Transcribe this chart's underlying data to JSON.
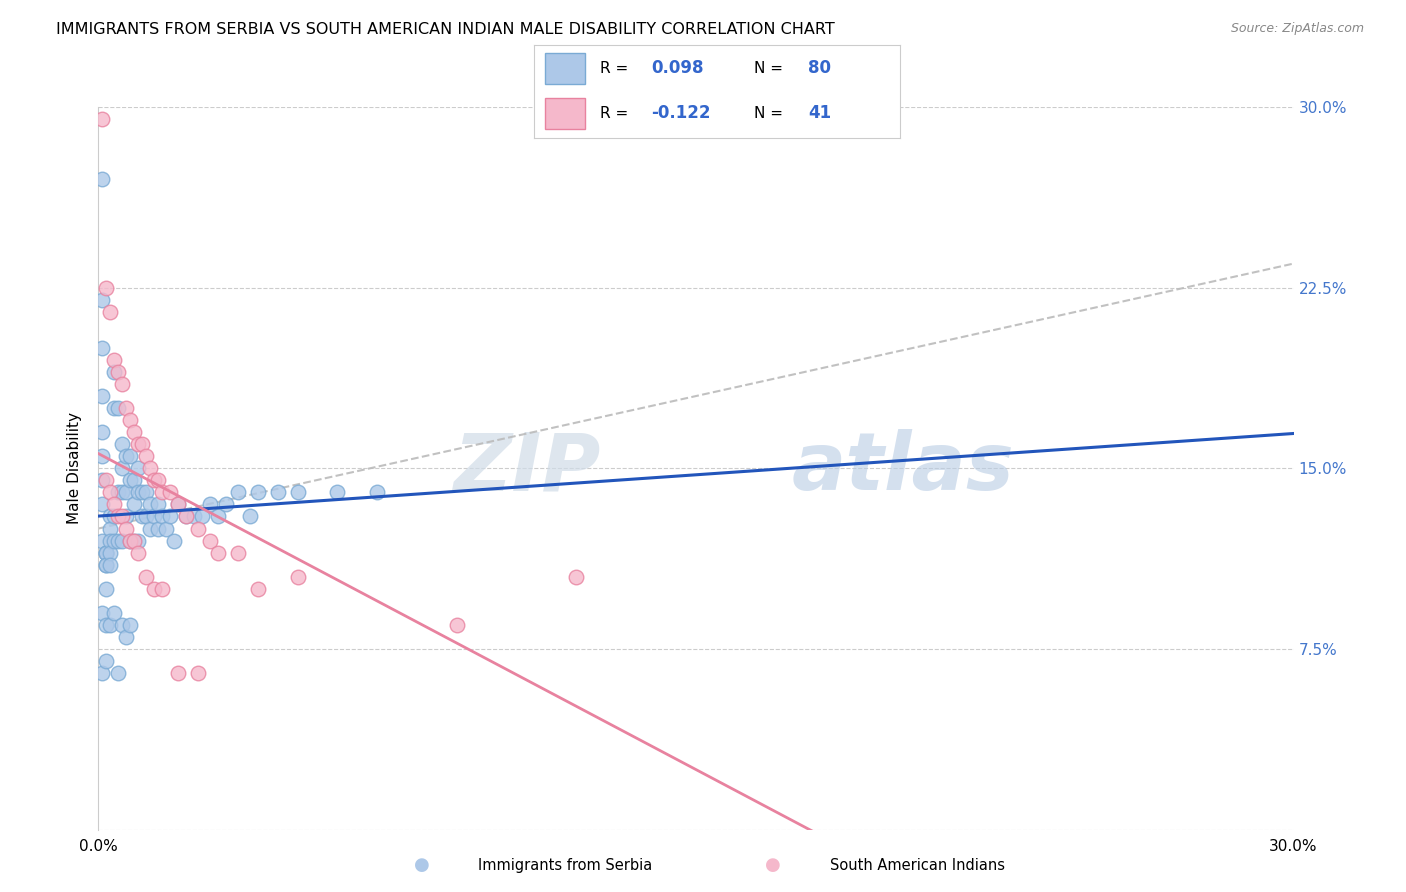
{
  "title": "IMMIGRANTS FROM SERBIA VS SOUTH AMERICAN INDIAN MALE DISABILITY CORRELATION CHART",
  "source": "Source: ZipAtlas.com",
  "ylabel": "Male Disability",
  "xmin": 0.0,
  "xmax": 0.3,
  "ymin": 0.0,
  "ymax": 0.3,
  "serbia_color": "#adc8e8",
  "serbia_edge_color": "#7aaad4",
  "sai_color": "#f5b8cb",
  "sai_edge_color": "#e8829f",
  "serbia_R": 0.098,
  "serbia_N": 80,
  "sai_R": -0.122,
  "sai_N": 41,
  "serbia_line_color": "#2255bb",
  "sai_line_color": "#e8829f",
  "trend_line_color": "#bbbbbb",
  "watermark_zip": "ZIP",
  "watermark_atlas": "atlas",
  "legend_label_1": "Immigrants from Serbia",
  "legend_label_2": "South American Indians",
  "serbia_x": [
    0.001,
    0.001,
    0.001,
    0.001,
    0.001,
    0.001,
    0.001,
    0.001,
    0.001,
    0.002,
    0.002,
    0.002,
    0.002,
    0.002,
    0.002,
    0.003,
    0.003,
    0.003,
    0.003,
    0.003,
    0.004,
    0.004,
    0.004,
    0.004,
    0.005,
    0.005,
    0.005,
    0.006,
    0.006,
    0.006,
    0.006,
    0.007,
    0.007,
    0.007,
    0.008,
    0.008,
    0.008,
    0.009,
    0.009,
    0.009,
    0.01,
    0.01,
    0.01,
    0.011,
    0.011,
    0.012,
    0.012,
    0.013,
    0.013,
    0.014,
    0.015,
    0.015,
    0.016,
    0.017,
    0.018,
    0.019,
    0.02,
    0.022,
    0.024,
    0.026,
    0.028,
    0.03,
    0.032,
    0.035,
    0.038,
    0.04,
    0.045,
    0.05,
    0.06,
    0.07,
    0.001,
    0.001,
    0.002,
    0.002,
    0.003,
    0.004,
    0.005,
    0.006,
    0.007,
    0.008
  ],
  "serbia_y": [
    0.27,
    0.22,
    0.2,
    0.18,
    0.165,
    0.155,
    0.145,
    0.135,
    0.12,
    0.115,
    0.115,
    0.115,
    0.11,
    0.11,
    0.1,
    0.13,
    0.125,
    0.12,
    0.115,
    0.11,
    0.19,
    0.175,
    0.13,
    0.12,
    0.175,
    0.14,
    0.12,
    0.16,
    0.15,
    0.14,
    0.12,
    0.155,
    0.14,
    0.13,
    0.155,
    0.145,
    0.12,
    0.145,
    0.135,
    0.12,
    0.15,
    0.14,
    0.12,
    0.14,
    0.13,
    0.14,
    0.13,
    0.135,
    0.125,
    0.13,
    0.135,
    0.125,
    0.13,
    0.125,
    0.13,
    0.12,
    0.135,
    0.13,
    0.13,
    0.13,
    0.135,
    0.13,
    0.135,
    0.14,
    0.13,
    0.14,
    0.14,
    0.14,
    0.14,
    0.14,
    0.09,
    0.065,
    0.085,
    0.07,
    0.085,
    0.09,
    0.065,
    0.085,
    0.08,
    0.085
  ],
  "sai_x": [
    0.001,
    0.002,
    0.003,
    0.004,
    0.005,
    0.006,
    0.007,
    0.008,
    0.009,
    0.01,
    0.011,
    0.012,
    0.013,
    0.014,
    0.015,
    0.016,
    0.018,
    0.02,
    0.022,
    0.025,
    0.028,
    0.03,
    0.035,
    0.04,
    0.05,
    0.09,
    0.12,
    0.002,
    0.003,
    0.004,
    0.005,
    0.006,
    0.007,
    0.008,
    0.009,
    0.01,
    0.012,
    0.014,
    0.016,
    0.02,
    0.025
  ],
  "sai_y": [
    0.295,
    0.225,
    0.215,
    0.195,
    0.19,
    0.185,
    0.175,
    0.17,
    0.165,
    0.16,
    0.16,
    0.155,
    0.15,
    0.145,
    0.145,
    0.14,
    0.14,
    0.135,
    0.13,
    0.125,
    0.12,
    0.115,
    0.115,
    0.1,
    0.105,
    0.085,
    0.105,
    0.145,
    0.14,
    0.135,
    0.13,
    0.13,
    0.125,
    0.12,
    0.12,
    0.115,
    0.105,
    0.1,
    0.1,
    0.065,
    0.065
  ]
}
